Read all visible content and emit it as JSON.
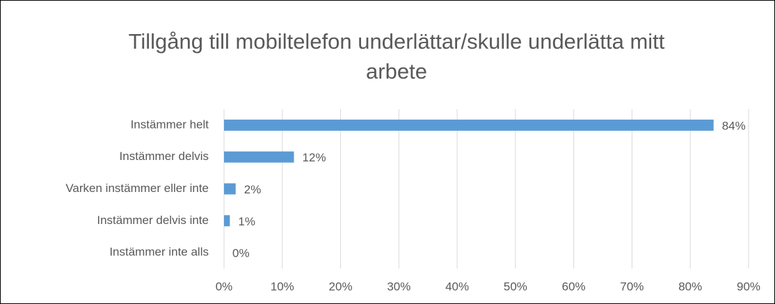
{
  "chart_data": {
    "type": "bar",
    "orientation": "horizontal",
    "title": "Tillgång till mobiltelefon underlättar/skulle underlätta mitt arbete",
    "categories": [
      "Instämmer helt",
      "Instämmer delvis",
      "Varken instämmer eller inte",
      "Instämmer delvis inte",
      "Instämmer inte alls"
    ],
    "values": [
      84,
      12,
      2,
      1,
      0
    ],
    "value_labels": [
      "84%",
      "12%",
      "2%",
      "1%",
      "0%"
    ],
    "color": "#5b9bd5",
    "xlim": [
      0,
      90
    ],
    "xticks": [
      {
        "value": 0,
        "label": "0%"
      },
      {
        "value": 10,
        "label": "10%"
      },
      {
        "value": 20,
        "label": "20%"
      },
      {
        "value": 30,
        "label": "30%"
      },
      {
        "value": 40,
        "label": "40%"
      },
      {
        "value": 50,
        "label": "50%"
      },
      {
        "value": 60,
        "label": "60%"
      },
      {
        "value": 70,
        "label": "70%"
      },
      {
        "value": 80,
        "label": "80%"
      },
      {
        "value": 90,
        "label": "90%"
      }
    ],
    "grid": true
  }
}
